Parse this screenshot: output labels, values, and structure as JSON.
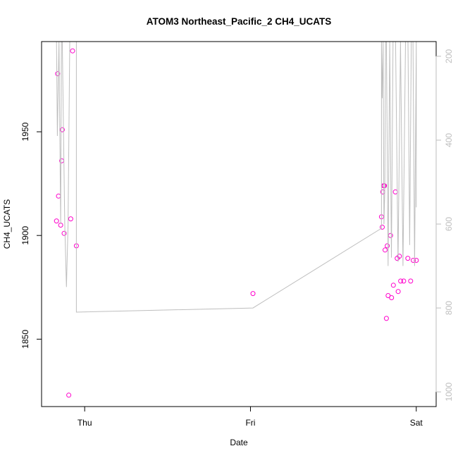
{
  "chart_data": {
    "type": "scatter",
    "title": "ATOM3 Northeast_Pacific_2 CH4_UCATS",
    "xlabel": "Date",
    "ylabel": "CH4_UCATS",
    "x_tick_labels": [
      "Thu",
      "Fri",
      "Sat"
    ],
    "x_ticks": [
      0,
      1,
      2
    ],
    "xlim": [
      -0.26,
      2.12
    ],
    "ylim": [
      1817.5,
      1993.5
    ],
    "y_ticks": [
      1850,
      1900,
      1950
    ],
    "y_tick_labels": [
      "1850",
      "1900",
      "1950"
    ],
    "y2lim": [
      1035,
      165
    ],
    "y2_ticks": [
      200,
      400,
      600,
      800,
      1000
    ],
    "y2_tick_labels": [
      "200",
      "400",
      "600",
      "800",
      "1000"
    ],
    "grid": false,
    "colors": {
      "points": "#ff00cc",
      "line": "#bebebe",
      "axes": "#000000",
      "right_axis": "#bebebe"
    },
    "series": [
      {
        "role": "points",
        "x": [
          -0.17,
          -0.163,
          -0.158,
          -0.145,
          -0.139,
          -0.135,
          -0.124,
          -0.096,
          -0.084,
          -0.073,
          -0.05,
          1.015,
          1.79,
          1.795,
          1.798,
          1.803,
          1.808,
          1.812,
          1.82,
          1.825,
          1.83,
          1.845,
          1.851,
          1.862,
          1.874,
          1.885,
          1.891,
          1.898,
          1.906,
          1.924,
          1.949,
          1.966,
          1.982,
          2.0
        ],
        "y": [
          1907,
          1978,
          1919,
          1905,
          1936,
          1951,
          1901,
          1823,
          1908,
          1989,
          1895,
          1872,
          1909,
          1904,
          1921,
          1924,
          1924,
          1893,
          1860,
          1895,
          1871,
          1900,
          1870,
          1876,
          1921,
          1889,
          1873,
          1890,
          1878,
          1878,
          1889,
          1878,
          1888,
          1888
        ]
      },
      {
        "role": "line",
        "axis": "right",
        "x": [
          -0.17,
          -0.165,
          -0.155,
          -0.145,
          -0.14,
          -0.135,
          -0.12,
          -0.11,
          -0.1,
          -0.09,
          -0.08,
          -0.07,
          -0.06,
          -0.05,
          -0.05,
          1.015,
          1.79,
          1.79,
          1.795,
          1.8,
          1.805,
          1.81,
          1.815,
          1.82,
          1.83,
          1.84,
          1.85,
          1.86,
          1.875,
          1.89,
          1.905,
          1.92,
          1.935,
          1.95,
          1.96,
          1.97,
          1.98,
          1.99,
          2.0,
          2.0
        ],
        "y": [
          165,
          390,
          165,
          600,
          165,
          165,
          600,
          750,
          600,
          165,
          165,
          165,
          165,
          165,
          810,
          800,
          610,
          165,
          300,
          165,
          600,
          520,
          165,
          165,
          700,
          165,
          680,
          165,
          165,
          690,
          165,
          700,
          165,
          165,
          650,
          165,
          165,
          700,
          165,
          560
        ]
      }
    ]
  }
}
